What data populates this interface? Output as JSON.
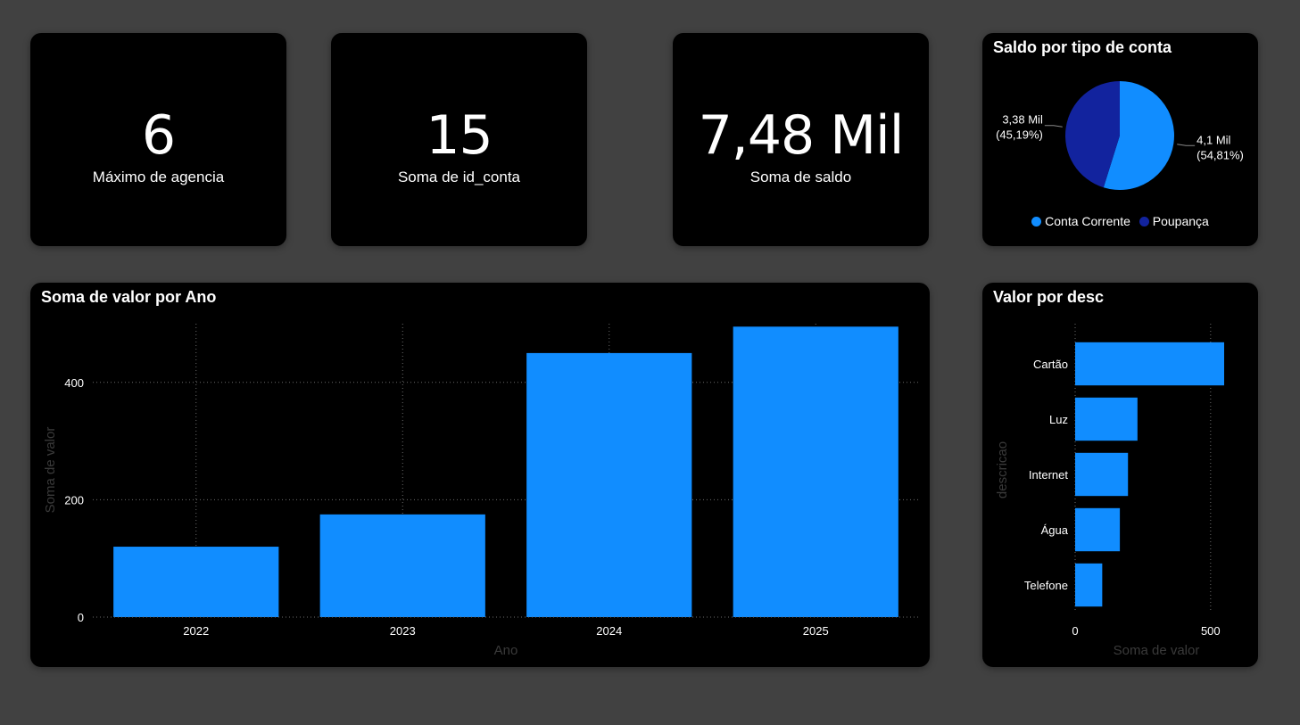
{
  "colors": {
    "background": "#414141",
    "card": "#000000",
    "bar": "#118DFF",
    "pie_primary": "#118DFF",
    "pie_secondary": "#12239E",
    "axis_title": "#3a3a3a",
    "grid": "#6b6b6b"
  },
  "kpis": [
    {
      "value": "6",
      "label": "Máximo de agencia"
    },
    {
      "value": "15",
      "label": "Soma de id_conta"
    },
    {
      "value": "7,48 Mil",
      "label": "Soma de saldo"
    }
  ],
  "chart_data": [
    {
      "type": "pie",
      "title": "Saldo por tipo de conta",
      "slices": [
        {
          "name": "Conta Corrente",
          "value": 4100,
          "label_value": "4,1 Mil",
          "label_pct": "(54,81%)",
          "color": "#118DFF"
        },
        {
          "name": "Poupança",
          "value": 3380,
          "label_value": "3,38 Mil",
          "label_pct": "(45,19%)",
          "color": "#12239E"
        }
      ],
      "legend": "bottom"
    },
    {
      "type": "bar",
      "title": "Soma de valor por Ano",
      "categories": [
        "2022",
        "2023",
        "2024",
        "2025"
      ],
      "values": [
        120,
        175,
        450,
        495
      ],
      "xlabel": "Ano",
      "ylabel": "Soma de valor",
      "ylim": [
        0,
        500
      ],
      "yticks": [
        "0",
        "200",
        "400"
      ],
      "grid": true
    },
    {
      "type": "bar",
      "orientation": "horizontal",
      "title": "Valor por desc",
      "categories": [
        "Cartão",
        "Luz",
        "Internet",
        "Água",
        "Telefone"
      ],
      "values": [
        550,
        230,
        195,
        165,
        100
      ],
      "xlabel": "Soma de valor",
      "ylabel": "descricao",
      "xlim": [
        0,
        550
      ],
      "xticks": [
        "0",
        "500"
      ],
      "grid": true
    }
  ]
}
